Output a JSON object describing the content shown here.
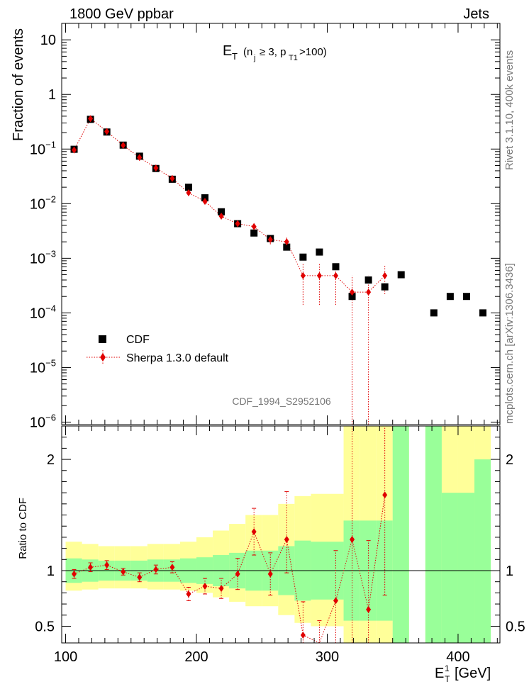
{
  "header": {
    "left": "1800 GeV ppbar",
    "right": "Jets"
  },
  "side": {
    "rivet": "Rivet 3.1.10,  400k events",
    "mcplots": "mcplots.cern.ch [arXiv:1306.3436]"
  },
  "chart_data": [
    {
      "type": "scatter",
      "title": "E_T (n_j ≥ 3, p_T1>100)",
      "ylabel": "Fraction of events",
      "y_scale": "log",
      "ylim": [
        9e-07,
        20
      ],
      "xlim": [
        97,
        432
      ],
      "analysis": "CDF_1994_S2952106",
      "y_ticks": [
        {
          "v": 10,
          "base": "10",
          "exp": ""
        },
        {
          "v": 1,
          "base": "1",
          "exp": ""
        },
        {
          "v": 0.1,
          "base": "10",
          "exp": "−1"
        },
        {
          "v": 0.01,
          "base": "10",
          "exp": "−2"
        },
        {
          "v": 0.001,
          "base": "10",
          "exp": "−3"
        },
        {
          "v": 0.0001,
          "base": "10",
          "exp": "−4"
        },
        {
          "v": 1e-05,
          "base": "10",
          "exp": "−5"
        },
        {
          "v": 1e-06,
          "base": "10",
          "exp": "−6"
        }
      ],
      "legend": {
        "position": "lower-left",
        "entries": [
          "CDF",
          "Sherpa 1.3.0 default"
        ]
      },
      "series": [
        {
          "name": "CDF",
          "marker": "square",
          "color": "#000000",
          "x": [
            106.5,
            119,
            131.5,
            144,
            156.5,
            169,
            181.5,
            194,
            206.5,
            219,
            231.5,
            244,
            256.5,
            269,
            281.5,
            294,
            306.5,
            319,
            331.5,
            344,
            356.5,
            381.5,
            394,
            406.5,
            419
          ],
          "y": [
            0.099,
            0.35,
            0.205,
            0.118,
            0.074,
            0.044,
            0.028,
            0.02,
            0.0128,
            0.0071,
            0.0043,
            0.0029,
            0.0023,
            0.0016,
            0.00105,
            0.0013,
            0.0007,
            0.0002,
            0.0004,
            0.0003,
            0.0005,
            0.0001,
            0.0002,
            0.0002,
            0.0001
          ]
        },
        {
          "name": "Sherpa 1.3.0 default",
          "marker": "diamond",
          "color": "#e00000",
          "x": [
            106.5,
            119,
            131.5,
            144,
            156.5,
            169,
            181.5,
            194,
            206.5,
            219,
            231.5,
            244,
            256.5,
            269,
            281.5,
            294,
            306.5,
            319,
            331.5,
            344
          ],
          "y": [
            0.096,
            0.36,
            0.21,
            0.117,
            0.07,
            0.045,
            0.029,
            0.0158,
            0.011,
            0.0059,
            0.0043,
            0.0038,
            0.0022,
            0.002,
            0.00048,
            0.00048,
            0.00048,
            0.00024,
            0.00024,
            0.00048
          ],
          "y_err_low": [
            0.002,
            0.006,
            0.004,
            0.002,
            0.0015,
            0.001,
            0.0008,
            0.0006,
            0.0008,
            0.0005,
            0.0005,
            0.0006,
            0.0004,
            0.0005,
            0.00034,
            0.00034,
            0.00034,
            0.00024,
            0.00024,
            0.00026
          ],
          "y_err_high": [
            0.002,
            0.006,
            0.004,
            0.002,
            0.0015,
            0.001,
            0.0008,
            0.0006,
            0.0008,
            0.0005,
            0.0005,
            0.0006,
            0.0004,
            0.0005,
            0.00034,
            0.00034,
            0.00034,
            0.00024,
            0.00024,
            0.00026
          ]
        }
      ]
    },
    {
      "type": "line",
      "ylabel": "Ratio to CDF",
      "xlabel": "E_T^1 [GeV]",
      "ylim": [
        0.35,
        2.3
      ],
      "xlim": [
        97,
        432
      ],
      "x_ticks": [
        100,
        200,
        300,
        400
      ],
      "y_ticks": [
        "0.5",
        "1",
        "2"
      ],
      "y_tick_values": [
        0.5,
        1,
        2
      ],
      "reference_line": 1,
      "bands": {
        "bin_edges": [
          100,
          112.5,
          125,
          137.5,
          150,
          162.5,
          175,
          187.5,
          200,
          212.5,
          225,
          237.5,
          250,
          262.5,
          275,
          287.5,
          300,
          312.5,
          325,
          337.5,
          350,
          362.5,
          375,
          387.5,
          400,
          412.5,
          425
        ],
        "green_low": [
          0.89,
          0.9,
          0.91,
          0.91,
          0.91,
          0.9,
          0.9,
          0.89,
          0.88,
          0.86,
          0.84,
          0.82,
          0.82,
          0.78,
          0.73,
          0.74,
          0.74,
          0.55,
          0.55,
          0.55,
          0.0,
          null,
          0.0,
          0.0,
          0.0,
          0.0
        ],
        "green_high": [
          1.11,
          1.1,
          1.09,
          1.09,
          1.09,
          1.1,
          1.1,
          1.11,
          1.12,
          1.14,
          1.16,
          1.18,
          1.18,
          1.22,
          1.27,
          1.26,
          1.26,
          1.45,
          1.45,
          1.45,
          9.0,
          null,
          9.0,
          1.7,
          1.7,
          2.0
        ],
        "yellow_low": [
          0.82,
          0.83,
          0.84,
          0.84,
          0.84,
          0.83,
          0.83,
          0.82,
          0.8,
          0.76,
          0.72,
          0.68,
          0.68,
          0.6,
          0.53,
          0.5,
          0.5,
          0.0,
          0.0,
          0.0,
          0.0,
          null,
          0.0,
          0.0,
          0.0,
          0.0
        ],
        "yellow_high": [
          1.26,
          1.24,
          1.22,
          1.22,
          1.22,
          1.24,
          1.24,
          1.26,
          1.3,
          1.36,
          1.42,
          1.5,
          1.5,
          1.6,
          1.67,
          1.69,
          1.69,
          9.0,
          9.0,
          9.0,
          9.0,
          null,
          9.0,
          9.0,
          9.0,
          9.0
        ]
      },
      "series": [
        {
          "name": "Sherpa 1.3.0 default",
          "color": "#e00000",
          "x": [
            106.5,
            119,
            131.5,
            144,
            156.5,
            169,
            181.5,
            194,
            206.5,
            219,
            231.5,
            244,
            256.5,
            269,
            281.5,
            294,
            306.5,
            319,
            331.5,
            344
          ],
          "y": [
            0.97,
            1.03,
            1.05,
            0.99,
            0.94,
            1.01,
            1.03,
            0.79,
            0.86,
            0.84,
            0.97,
            1.35,
            0.97,
            1.28,
            0.42,
            0.3,
            0.73,
            1.28,
            0.65,
            1.68
          ],
          "y_err_low": [
            0.04,
            0.04,
            0.04,
            0.03,
            0.04,
            0.04,
            0.05,
            0.06,
            0.07,
            0.09,
            0.14,
            0.21,
            0.19,
            0.3,
            0.3,
            0.25,
            0.4,
            1.1,
            0.6,
            0.9
          ],
          "y_err_high": [
            0.04,
            0.04,
            0.04,
            0.03,
            0.04,
            0.04,
            0.05,
            0.06,
            0.07,
            0.09,
            0.14,
            0.21,
            0.19,
            0.43,
            0.3,
            0.25,
            0.45,
            1.1,
            0.62,
            0.9
          ]
        }
      ]
    }
  ]
}
